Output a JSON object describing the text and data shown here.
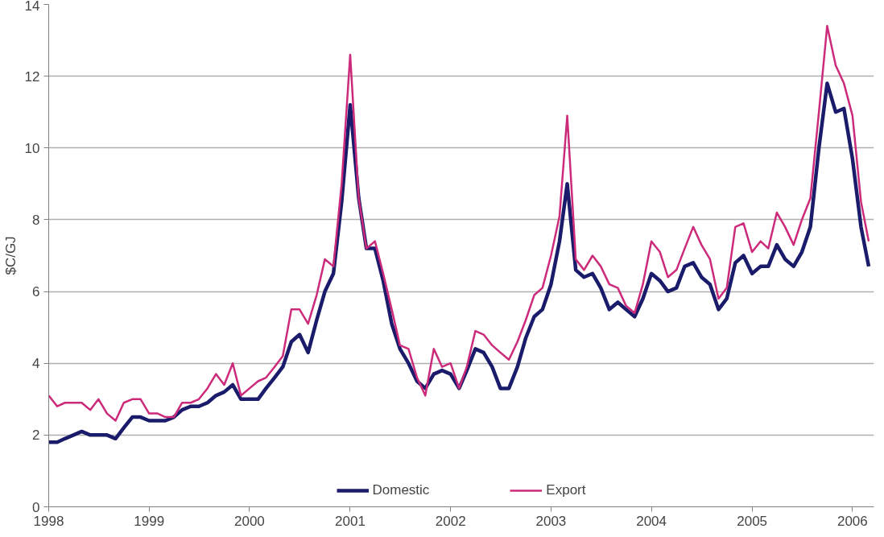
{
  "chart_data": {
    "type": "line",
    "ylabel": "$C/GJ",
    "x": [
      "1998-01",
      "1998-02",
      "1998-03",
      "1998-04",
      "1998-05",
      "1998-06",
      "1998-07",
      "1998-08",
      "1998-09",
      "1998-10",
      "1998-11",
      "1998-12",
      "1999-01",
      "1999-02",
      "1999-03",
      "1999-04",
      "1999-05",
      "1999-06",
      "1999-07",
      "1999-08",
      "1999-09",
      "1999-10",
      "1999-11",
      "1999-12",
      "2000-01",
      "2000-02",
      "2000-03",
      "2000-04",
      "2000-05",
      "2000-06",
      "2000-07",
      "2000-08",
      "2000-09",
      "2000-10",
      "2000-11",
      "2000-12",
      "2001-01",
      "2001-02",
      "2001-03",
      "2001-04",
      "2001-05",
      "2001-06",
      "2001-07",
      "2001-08",
      "2001-09",
      "2001-10",
      "2001-11",
      "2001-12",
      "2002-01",
      "2002-02",
      "2002-03",
      "2002-04",
      "2002-05",
      "2002-06",
      "2002-07",
      "2002-08",
      "2002-09",
      "2002-10",
      "2002-11",
      "2002-12",
      "2003-01",
      "2003-02",
      "2003-03",
      "2003-04",
      "2003-05",
      "2003-06",
      "2003-07",
      "2003-08",
      "2003-09",
      "2003-10",
      "2003-11",
      "2003-12",
      "2004-01",
      "2004-02",
      "2004-03",
      "2004-04",
      "2004-05",
      "2004-06",
      "2004-07",
      "2004-08",
      "2004-09",
      "2004-10",
      "2004-11",
      "2004-12",
      "2005-01",
      "2005-02",
      "2005-03",
      "2005-04",
      "2005-05",
      "2005-06",
      "2005-07",
      "2005-08",
      "2005-09",
      "2005-10",
      "2005-11",
      "2005-12",
      "2006-01",
      "2006-02",
      "2006-03"
    ],
    "series": [
      {
        "name": "Domestic",
        "color": "#1b1b6b",
        "values": [
          1.8,
          1.8,
          1.9,
          2.0,
          2.1,
          2.0,
          2.0,
          2.0,
          1.9,
          2.2,
          2.5,
          2.5,
          2.4,
          2.4,
          2.4,
          2.5,
          2.7,
          2.8,
          2.8,
          2.9,
          3.1,
          3.2,
          3.4,
          3.0,
          3.0,
          3.0,
          3.3,
          3.6,
          3.9,
          4.6,
          4.8,
          4.3,
          5.2,
          6.0,
          6.5,
          8.5,
          11.2,
          8.6,
          7.2,
          7.2,
          6.3,
          5.1,
          4.4,
          4.0,
          3.5,
          3.3,
          3.7,
          3.8,
          3.7,
          3.3,
          3.8,
          4.4,
          4.3,
          3.9,
          3.3,
          3.3,
          3.9,
          4.7,
          5.3,
          5.5,
          6.2,
          7.4,
          9.0,
          6.6,
          6.4,
          6.5,
          6.1,
          5.5,
          5.7,
          5.5,
          5.3,
          5.8,
          6.5,
          6.3,
          6.0,
          6.1,
          6.7,
          6.8,
          6.4,
          6.2,
          5.5,
          5.8,
          6.8,
          7.0,
          6.5,
          6.7,
          6.7,
          7.3,
          6.9,
          6.7,
          7.1,
          7.8,
          10.0,
          11.8,
          11.0,
          11.1,
          9.7,
          7.8,
          6.7
        ]
      },
      {
        "name": "Export",
        "color": "#cc2a7a",
        "values": [
          3.1,
          2.8,
          2.9,
          2.9,
          2.9,
          2.7,
          3.0,
          2.6,
          2.4,
          2.9,
          3.0,
          3.0,
          2.6,
          2.6,
          2.5,
          2.5,
          2.9,
          2.9,
          3.0,
          3.3,
          3.7,
          3.4,
          4.0,
          3.1,
          3.3,
          3.5,
          3.6,
          3.9,
          4.2,
          5.5,
          5.5,
          5.1,
          5.9,
          6.9,
          6.7,
          9.0,
          12.6,
          8.6,
          7.2,
          7.4,
          6.5,
          5.5,
          4.5,
          4.4,
          3.6,
          3.1,
          4.4,
          3.9,
          4.0,
          3.3,
          3.9,
          4.9,
          4.8,
          4.5,
          4.3,
          4.1,
          4.6,
          5.2,
          5.9,
          6.1,
          7.0,
          8.1,
          10.9,
          6.9,
          6.6,
          7.0,
          6.7,
          6.2,
          6.1,
          5.6,
          5.4,
          6.2,
          7.4,
          7.1,
          6.4,
          6.6,
          7.2,
          7.8,
          7.3,
          6.9,
          5.8,
          6.1,
          7.8,
          7.9,
          7.1,
          7.4,
          7.2,
          8.2,
          7.8,
          7.3,
          8.0,
          8.6,
          11.0,
          13.4,
          12.3,
          11.8,
          10.9,
          8.5,
          7.4
        ]
      }
    ],
    "xlim": [
      "1998-01-01",
      "2006-03-20"
    ],
    "xticks": [
      "1998",
      "1999",
      "2000",
      "2001",
      "2002",
      "2003",
      "2004",
      "2005",
      "2006"
    ],
    "ylim": [
      0,
      14
    ],
    "yticks": [
      0,
      2,
      4,
      6,
      8,
      10,
      12,
      14
    ],
    "grid": "y",
    "legend": "bottom",
    "line_style": "solid"
  }
}
